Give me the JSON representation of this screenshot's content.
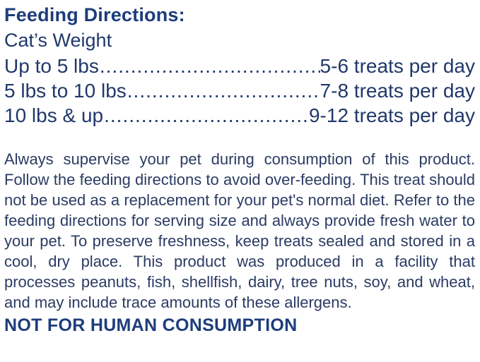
{
  "title": "Feeding Directions:",
  "feeding_table": {
    "header": "Cat’s Weight",
    "leader_dots": "........................................................................................................",
    "rows": [
      {
        "weight": "Up to 5 lbs",
        "amount": "5-6 treats per day"
      },
      {
        "weight": "5 lbs to 10 lbs",
        "amount": "7-8 treats per day"
      },
      {
        "weight": "10 lbs & up",
        "amount": "9-12 treats per day"
      }
    ]
  },
  "disclaimer": "Always supervise your pet during consumption of this product. Follow the feeding directions to avoid over-feeding. This treat should not be used as a replacement for your pet's normal diet. Refer to the feeding directions for serving size and always provide fresh water to your pet. To preserve freshness, keep treats sealed and stored in a cool, dry place. This product was produced in a facility that processes peanuts, fish, shellfish, dairy, tree nuts, soy, and wheat, and may include trace amounts of these allergens.",
  "warning": "NOT FOR HUMAN CONSUMPTION",
  "colors": {
    "heading": "#1d3d7c",
    "table_text": "#21386b",
    "body_text": "#2b3b63",
    "background": "#ffffff"
  }
}
